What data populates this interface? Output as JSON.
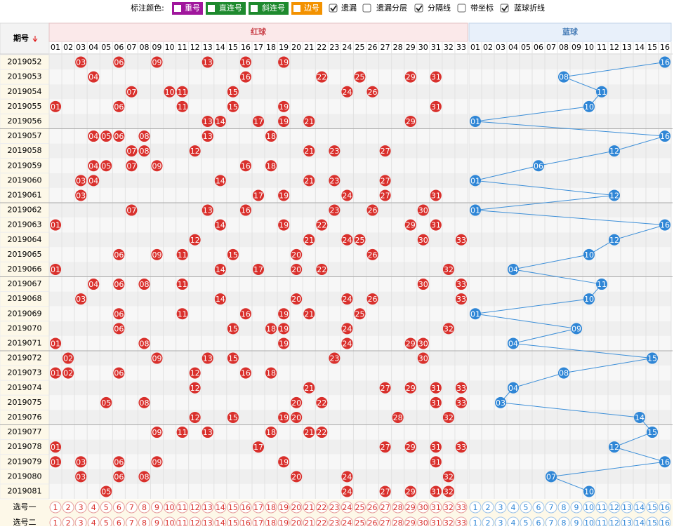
{
  "toolbar": {
    "label": "标注颜色:",
    "tags": [
      {
        "text": "重号",
        "color": "#a0169c"
      },
      {
        "text": "直连号",
        "color": "#1e8a2e"
      },
      {
        "text": "斜连号",
        "color": "#1e8a2e"
      },
      {
        "text": "边号",
        "color": "#f39200"
      }
    ],
    "options": [
      {
        "text": "遗漏",
        "checked": true
      },
      {
        "text": "遗漏分层",
        "checked": false
      },
      {
        "text": "分隔线",
        "checked": true
      },
      {
        "text": "带坐标",
        "checked": false
      },
      {
        "text": "蓝球折线",
        "checked": true
      }
    ]
  },
  "header": {
    "period": "期号",
    "red": "红球",
    "blue": "蓝球"
  },
  "red_numbers": [
    "01",
    "02",
    "03",
    "04",
    "05",
    "06",
    "07",
    "08",
    "09",
    "10",
    "11",
    "12",
    "13",
    "14",
    "15",
    "16",
    "17",
    "18",
    "19",
    "20",
    "21",
    "22",
    "23",
    "24",
    "25",
    "26",
    "27",
    "28",
    "29",
    "30",
    "31",
    "32",
    "33"
  ],
  "blue_numbers": [
    "01",
    "02",
    "03",
    "04",
    "05",
    "06",
    "07",
    "08",
    "09",
    "10",
    "11",
    "12",
    "13",
    "14",
    "15",
    "16"
  ],
  "rows": [
    {
      "period": "2019052",
      "red": [
        "03",
        "06",
        "09",
        "13",
        "16",
        "19"
      ],
      "blue": "16"
    },
    {
      "period": "2019053",
      "red": [
        "04",
        "16",
        "22",
        "25",
        "29",
        "31"
      ],
      "blue": "08"
    },
    {
      "period": "2019054",
      "red": [
        "07",
        "10",
        "11",
        "15",
        "24",
        "26"
      ],
      "blue": "11"
    },
    {
      "period": "2019055",
      "red": [
        "01",
        "06",
        "11",
        "15",
        "19",
        "31"
      ],
      "blue": "10"
    },
    {
      "period": "2019056",
      "red": [
        "13",
        "14",
        "17",
        "19",
        "21",
        "29"
      ],
      "blue": "01"
    },
    {
      "period": "2019057",
      "red": [
        "04",
        "05",
        "06",
        "08",
        "13",
        "18"
      ],
      "blue": "16"
    },
    {
      "period": "2019058",
      "red": [
        "07",
        "08",
        "12",
        "21",
        "23",
        "27"
      ],
      "blue": "12"
    },
    {
      "period": "2019059",
      "red": [
        "04",
        "05",
        "07",
        "09",
        "16",
        "18"
      ],
      "blue": "06"
    },
    {
      "period": "2019060",
      "red": [
        "03",
        "04",
        "14",
        "21",
        "23",
        "27"
      ],
      "blue": "01"
    },
    {
      "period": "2019061",
      "red": [
        "03",
        "17",
        "19",
        "24",
        "27",
        "31"
      ],
      "blue": "12"
    },
    {
      "period": "2019062",
      "red": [
        "07",
        "13",
        "16",
        "23",
        "26",
        "30"
      ],
      "blue": "01"
    },
    {
      "period": "2019063",
      "red": [
        "01",
        "14",
        "19",
        "22",
        "29",
        "31"
      ],
      "blue": "16"
    },
    {
      "period": "2019064",
      "red": [
        "12",
        "21",
        "24",
        "25",
        "30",
        "33"
      ],
      "blue": "12"
    },
    {
      "period": "2019065",
      "red": [
        "06",
        "09",
        "11",
        "15",
        "20",
        "26"
      ],
      "blue": "10"
    },
    {
      "period": "2019066",
      "red": [
        "01",
        "14",
        "17",
        "20",
        "22",
        "32"
      ],
      "blue": "04"
    },
    {
      "period": "2019067",
      "red": [
        "04",
        "06",
        "08",
        "11",
        "30",
        "33"
      ],
      "blue": "11"
    },
    {
      "period": "2019068",
      "red": [
        "03",
        "14",
        "20",
        "24",
        "26",
        "33"
      ],
      "blue": "10"
    },
    {
      "period": "2019069",
      "red": [
        "06",
        "11",
        "16",
        "19",
        "21",
        "25"
      ],
      "blue": "01"
    },
    {
      "period": "2019070",
      "red": [
        "06",
        "15",
        "18",
        "19",
        "24",
        "32"
      ],
      "blue": "09"
    },
    {
      "period": "2019071",
      "red": [
        "01",
        "08",
        "19",
        "24",
        "29",
        "30"
      ],
      "blue": "04"
    },
    {
      "period": "2019072",
      "red": [
        "02",
        "09",
        "13",
        "15",
        "23",
        "30"
      ],
      "blue": "15"
    },
    {
      "period": "2019073",
      "red": [
        "01",
        "02",
        "06",
        "12",
        "16",
        "18"
      ],
      "blue": "08"
    },
    {
      "period": "2019074",
      "red": [
        "12",
        "21",
        "27",
        "29",
        "31",
        "33"
      ],
      "blue": "04"
    },
    {
      "period": "2019075",
      "red": [
        "05",
        "08",
        "20",
        "22",
        "31",
        "33"
      ],
      "blue": "03"
    },
    {
      "period": "2019076",
      "red": [
        "12",
        "15",
        "19",
        "20",
        "28",
        "32"
      ],
      "blue": "14"
    },
    {
      "period": "2019077",
      "red": [
        "09",
        "11",
        "13",
        "18",
        "21",
        "22"
      ],
      "blue": "15"
    },
    {
      "period": "2019078",
      "red": [
        "01",
        "17",
        "27",
        "29",
        "31",
        "33"
      ],
      "blue": "12"
    },
    {
      "period": "2019079",
      "red": [
        "01",
        "03",
        "06",
        "09",
        "19",
        "31"
      ],
      "blue": "16"
    },
    {
      "period": "2019080",
      "red": [
        "03",
        "06",
        "08",
        "20",
        "24",
        "32"
      ],
      "blue": "07"
    },
    {
      "period": "2019081",
      "red": [
        "05",
        "24",
        "27",
        "29",
        "31",
        "32"
      ],
      "blue": "10"
    }
  ],
  "pick_rows": [
    "选号一",
    "选号二"
  ],
  "pick_red": [
    "1",
    "2",
    "3",
    "4",
    "5",
    "6",
    "7",
    "8",
    "9",
    "10",
    "11",
    "12",
    "13",
    "14",
    "15",
    "16",
    "17",
    "18",
    "19",
    "20",
    "21",
    "22",
    "23",
    "24",
    "25",
    "26",
    "27",
    "28",
    "29",
    "30",
    "31",
    "32",
    "33"
  ],
  "pick_blue": [
    "1",
    "2",
    "3",
    "4",
    "5",
    "6",
    "7",
    "8",
    "9",
    "10",
    "11",
    "12",
    "13",
    "14",
    "15",
    "16"
  ]
}
